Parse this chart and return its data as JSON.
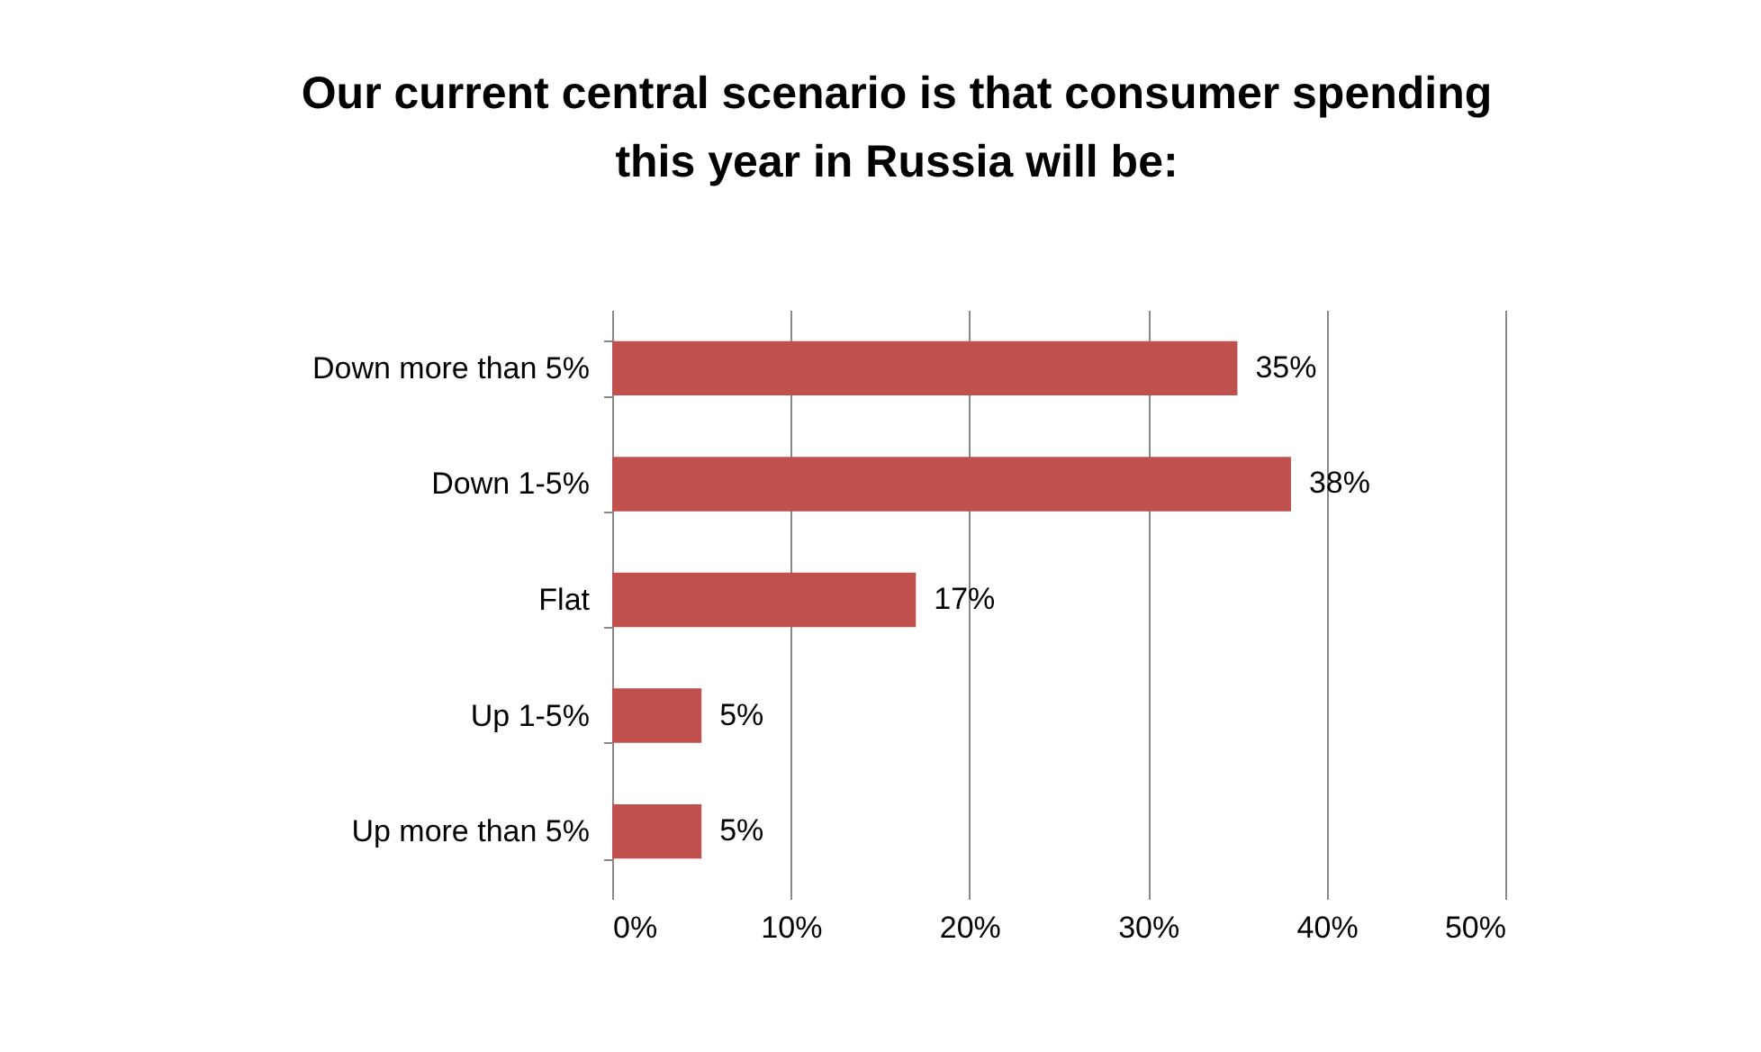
{
  "chart_data": {
    "type": "bar",
    "orientation": "horizontal",
    "title": "Our current central scenario is that consumer spending this year in Russia will be:",
    "categories": [
      "Down more than 5%",
      "Down 1-5%",
      "Flat",
      "Up 1-5%",
      "Up more than 5%"
    ],
    "values": [
      35,
      38,
      17,
      5,
      5
    ],
    "color": "#c0504d",
    "xlim": [
      0,
      50
    ],
    "xticks": [
      {
        "value": 0,
        "label": "0%"
      },
      {
        "value": 10,
        "label": "10%"
      },
      {
        "value": 20,
        "label": "20%"
      },
      {
        "value": 30,
        "label": "30%"
      },
      {
        "value": 40,
        "label": "40%"
      },
      {
        "value": 50,
        "label": "50%"
      }
    ],
    "value_labels": [
      "35%",
      "38%",
      "17%",
      "5%",
      "5%"
    ],
    "grid": "x"
  }
}
